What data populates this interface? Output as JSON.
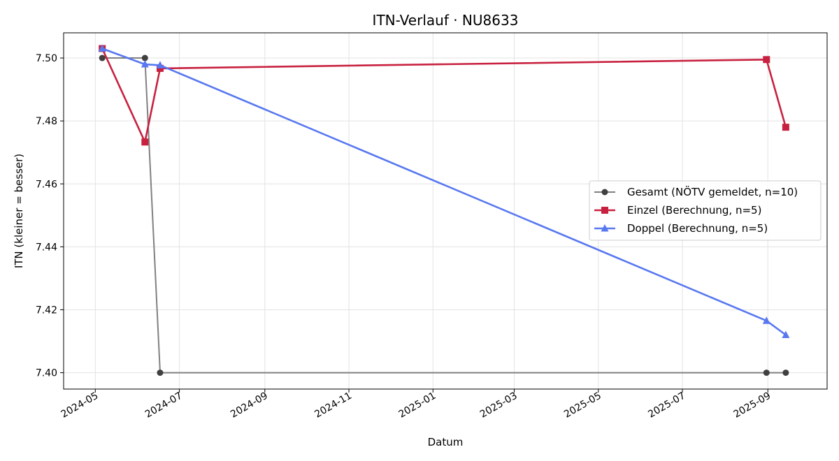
{
  "chart_data": {
    "type": "line",
    "title": "ITN-Verlauf · NU8633",
    "xlabel": "Datum",
    "ylabel": "ITN  (kleiner = besser)",
    "xlim": [
      "2024-04-08",
      "2025-10-14"
    ],
    "ylim": [
      7.3948,
      7.508
    ],
    "x_ticks": [
      "2024-05-01",
      "2024-07-01",
      "2024-09-01",
      "2024-11-01",
      "2025-01-01",
      "2025-03-01",
      "2025-05-01",
      "2025-07-01",
      "2025-09-01"
    ],
    "x_tick_labels": [
      "2024-05",
      "2024-07",
      "2024-09",
      "2024-11",
      "2025-01",
      "2025-03",
      "2025-05",
      "2025-07",
      "2025-09"
    ],
    "y_ticks": [
      7.4,
      7.42,
      7.44,
      7.46,
      7.48,
      7.5
    ],
    "y_tick_labels": [
      "7.40",
      "7.42",
      "7.44",
      "7.46",
      "7.48",
      "7.50"
    ],
    "grid": true,
    "legend_position": "center-right",
    "series": [
      {
        "name": "Gesamt (NÖTV gemeldet, n=10)",
        "color": "#808080",
        "marker_color": "#404040",
        "marker": "circle",
        "points": [
          {
            "x": "2024-05-06",
            "y": 7.5
          },
          {
            "x": "2024-06-06",
            "y": 7.5
          },
          {
            "x": "2024-06-17",
            "y": 7.4
          },
          {
            "x": "2025-08-31",
            "y": 7.4
          },
          {
            "x": "2025-09-14",
            "y": 7.4
          }
        ]
      },
      {
        "name": "Einzel (Berechnung, n=5)",
        "color": "#c8213f",
        "marker_color": "#c8213f",
        "marker": "square",
        "points": [
          {
            "x": "2024-05-06",
            "y": 7.503
          },
          {
            "x": "2024-06-06",
            "y": 7.4733
          },
          {
            "x": "2024-06-17",
            "y": 7.4967
          },
          {
            "x": "2025-08-31",
            "y": 7.4995
          },
          {
            "x": "2025-09-14",
            "y": 7.478
          }
        ]
      },
      {
        "name": "Doppel (Berechnung, n=5)",
        "color": "#5878f0",
        "marker_color": "#5878f0",
        "marker": "triangle",
        "points": [
          {
            "x": "2024-05-06",
            "y": 7.503
          },
          {
            "x": "2024-06-06",
            "y": 7.498
          },
          {
            "x": "2024-06-17",
            "y": 7.4977
          },
          {
            "x": "2025-08-31",
            "y": 7.4165
          },
          {
            "x": "2025-09-14",
            "y": 7.412
          }
        ]
      }
    ]
  }
}
